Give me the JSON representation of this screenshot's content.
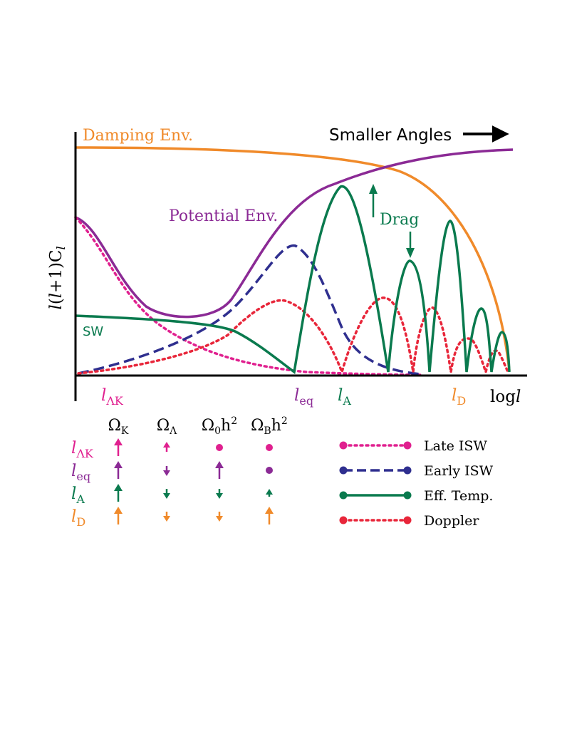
{
  "colors": {
    "damping": "#f08a2a",
    "potential": "#8b2a95",
    "efftemp": "#0a7a4e",
    "early_isw": "#2f2f8f",
    "late_isw": "#e0208f",
    "doppler": "#e8263a",
    "axis": "#000000"
  },
  "labels": {
    "damping_env": "Damping Env.",
    "smaller_angles": "Smaller Angles",
    "potential_env": "Potential Env.",
    "drag": "Drag",
    "sw": "SW",
    "y_axis": {
      "l": "l",
      "mid": "(",
      "l2": "l",
      "rest": "+1)C",
      "sub": "l"
    },
    "x_axis": {
      "log": "log",
      "l": "l"
    }
  },
  "scale_markers": [
    {
      "id": "l-lambda-k",
      "base": "l",
      "sub": "ΛK",
      "color": "#e0208f"
    },
    {
      "id": "l-eq",
      "base": "l",
      "sub": "eq",
      "color": "#8b2a95"
    },
    {
      "id": "l-a",
      "base": "l",
      "sub": "A",
      "color": "#0a7a4e"
    },
    {
      "id": "l-d",
      "base": "l",
      "sub": "D",
      "color": "#f08a2a"
    }
  ],
  "table": {
    "columns": [
      {
        "base": "Ω",
        "sub": "K",
        "sup": ""
      },
      {
        "base": "Ω",
        "sub": "Λ",
        "sup": ""
      },
      {
        "base": "Ω",
        "sub": "0",
        "sup": "2",
        "mid": "h"
      },
      {
        "base": "Ω",
        "sub": "B",
        "sup": "2",
        "mid": "h"
      }
    ],
    "rows": [
      {
        "base": "l",
        "sub": "ΛK",
        "color": "#e0208f",
        "cells": [
          "up-long",
          "up-short",
          "dot",
          "dot"
        ]
      },
      {
        "base": "l",
        "sub": "eq",
        "color": "#8b2a95",
        "cells": [
          "up-long",
          "down-short",
          "up-long",
          "dot"
        ]
      },
      {
        "base": "l",
        "sub": "A",
        "color": "#0a7a4e",
        "cells": [
          "up-long",
          "down-short",
          "down-short",
          "up-tiny"
        ]
      },
      {
        "base": "l",
        "sub": "D",
        "color": "#f08a2a",
        "cells": [
          "up-long",
          "down-short",
          "down-short",
          "up-long"
        ]
      }
    ]
  },
  "legend": [
    {
      "label": "Late ISW",
      "style": "dotted",
      "color": "#e0208f"
    },
    {
      "label": "Early ISW",
      "style": "dashed",
      "color": "#2f2f8f"
    },
    {
      "label": "Eff. Temp.",
      "style": "solid",
      "color": "#0a7a4e"
    },
    {
      "label": "Doppler",
      "style": "dotted",
      "color": "#e8263a"
    }
  ]
}
